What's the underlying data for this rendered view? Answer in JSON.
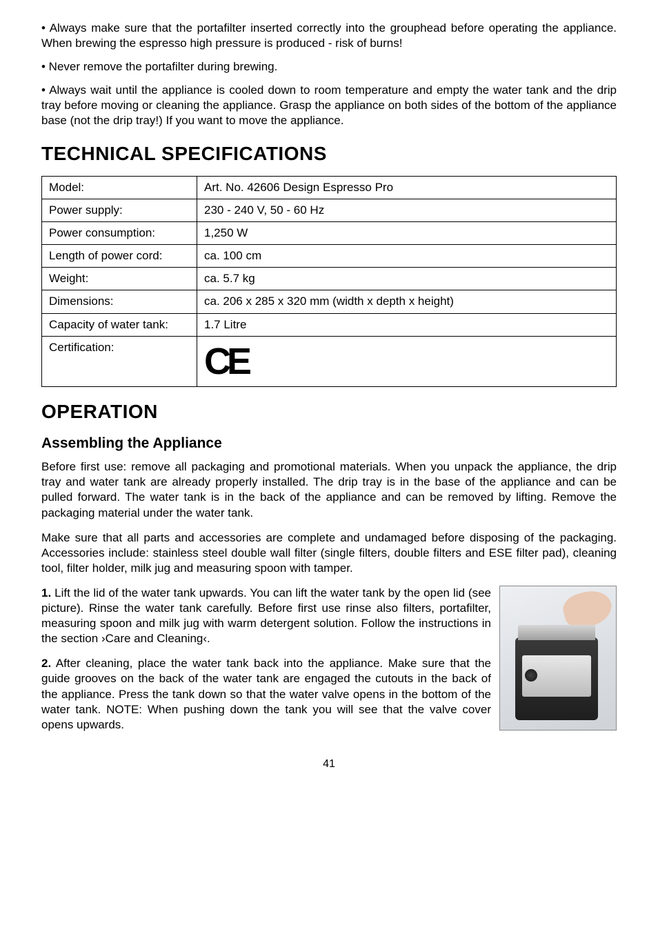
{
  "intro_bullets": [
    "• Always make sure that the portafilter inserted correctly into the grouphead before operating the appliance. When brewing the espresso high pressure is produced - risk of burns!",
    "• Never remove the portafilter during brewing.",
    "• Always wait until the appliance is cooled down to room temperature and empty the water tank and the drip tray before moving or cleaning the appliance. Grasp the appliance on both sides of the bottom of the appliance base (not the drip tray!) If you want to move the appliance."
  ],
  "tech_spec": {
    "heading": "TECHNICAL SPECIFICATIONS",
    "rows": [
      {
        "label": "Model:",
        "value": "Art. No. 42606 Design Espresso Pro"
      },
      {
        "label": "Power supply:",
        "value": "230 - 240 V, 50 - 60 Hz"
      },
      {
        "label": "Power consumption:",
        "value": "1,250 W"
      },
      {
        "label": "Length of power cord:",
        "value": "ca. 100 cm"
      },
      {
        "label": "Weight:",
        "value": "ca. 5.7 kg"
      },
      {
        "label": "Dimensions:",
        "value": "ca. 206 x 285 x 320 mm (width x depth x height)"
      },
      {
        "label": "Capacity of water tank:",
        "value": "1.7 Litre"
      }
    ],
    "cert_row": {
      "label": "Certification:",
      "mark": "CE"
    }
  },
  "operation": {
    "heading": "OPERATION",
    "subheading": "Assembling the Appliance",
    "paras": [
      "Before first use: remove all packaging and promotional materials. When you unpack the appliance, the drip tray and water tank are already properly installed. The drip tray is in the base of the appliance and can be pulled forward. The water tank is in the back of the appliance and can be removed by lifting. Remove the packaging material under the water tank.",
      "Make sure that all parts and accessories are complete and undamaged before disposing of the packaging. Accessories include: stainless steel double wall filter (single filters, double filters and ESE filter pad), cleaning tool, filter holder, milk jug and measuring spoon with tamper."
    ],
    "steps": [
      {
        "num": "1.",
        "text": "Lift the lid of the water tank upwards. You can lift the water tank by the open lid (see picture). Rinse the water tank carefully. Before first use rinse also filters, portafilter, measuring spoon and milk jug with warm detergent solution. Follow the instructions in the section ›Care and Cleaning‹."
      },
      {
        "num": "2.",
        "text": "After cleaning, place the water tank back into the appliance. Make sure that the guide grooves on the back of the water tank are engaged the cutouts in the back of the appliance. Press the tank down so that the water valve opens in the bottom of the water tank. NOTE: When pushing down the tank you will see that the valve cover opens upwards."
      }
    ]
  },
  "page_number": "41",
  "colors": {
    "text": "#000000",
    "background": "#ffffff",
    "border": "#000000"
  }
}
